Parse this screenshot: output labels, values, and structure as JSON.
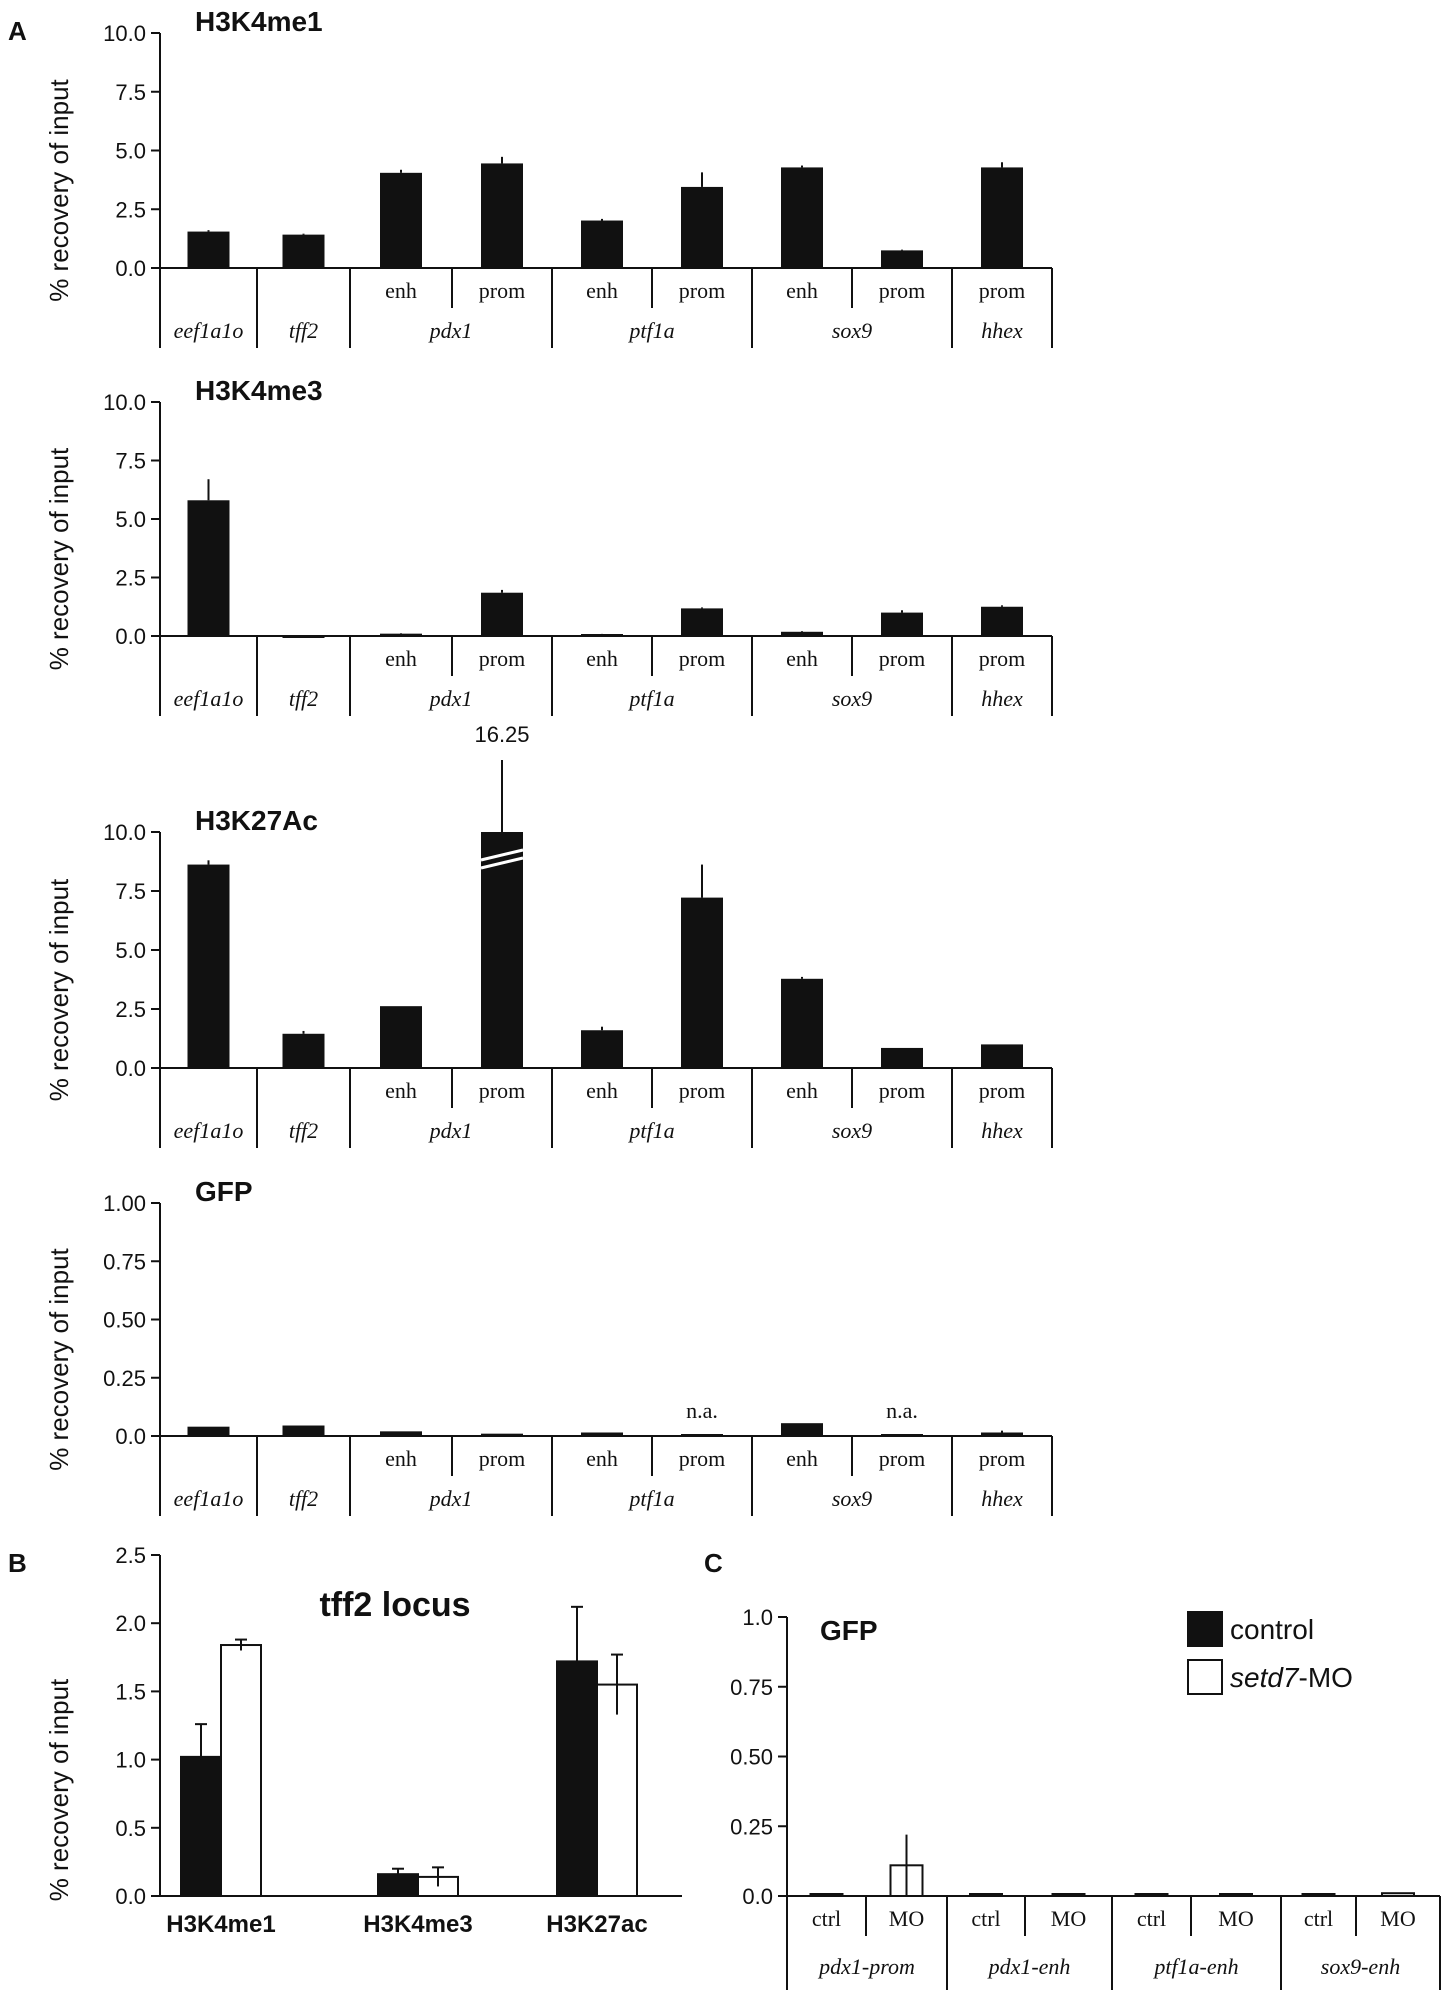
{
  "chart_data": [
    {
      "type": "bar",
      "panel_letter": "A",
      "title": "H3K4me1",
      "ylabel": "% recovery of input",
      "ylim": [
        0,
        10
      ],
      "yticks": [
        "10.0",
        "7.5",
        "5.0",
        "2.5",
        "0.0"
      ],
      "sublabels": [
        "",
        "",
        "enh",
        "prom",
        "enh",
        "prom",
        "enh",
        "prom",
        "prom"
      ],
      "genes": [
        {
          "label": "eef1a1o",
          "span": [
            0,
            0
          ]
        },
        {
          "label": "tff2",
          "span": [
            1,
            1
          ]
        },
        {
          "label": "pdx1",
          "span": [
            2,
            3
          ]
        },
        {
          "label": "ptf1a",
          "span": [
            4,
            5
          ]
        },
        {
          "label": "sox9",
          "span": [
            6,
            7
          ]
        },
        {
          "label": "hhex",
          "span": [
            8,
            8
          ]
        }
      ],
      "values": [
        1.55,
        1.42,
        4.05,
        4.45,
        2.02,
        3.45,
        4.28,
        0.75,
        4.28
      ],
      "errors": [
        0.06,
        0.04,
        0.13,
        0.28,
        0.07,
        0.62,
        0.08,
        0.03,
        0.22
      ],
      "bar_labels": [],
      "breaks": []
    },
    {
      "type": "bar",
      "panel_letter": "",
      "title": "H3K4me3",
      "ylabel": "% recovery of input",
      "ylim": [
        0,
        10
      ],
      "yticks": [
        "10.0",
        "7.5",
        "5.0",
        "2.5",
        "0.0"
      ],
      "sublabels": [
        "",
        "",
        "enh",
        "prom",
        "enh",
        "prom",
        "enh",
        "prom",
        "prom"
      ],
      "genes": [
        {
          "label": "eef1a1o",
          "span": [
            0,
            0
          ]
        },
        {
          "label": "tff2",
          "span": [
            1,
            1
          ]
        },
        {
          "label": "pdx1",
          "span": [
            2,
            3
          ]
        },
        {
          "label": "ptf1a",
          "span": [
            4,
            5
          ]
        },
        {
          "label": "sox9",
          "span": [
            6,
            7
          ]
        },
        {
          "label": "hhex",
          "span": [
            8,
            8
          ]
        }
      ],
      "values": [
        5.8,
        -0.05,
        0.1,
        1.85,
        0.07,
        1.18,
        0.18,
        1.0,
        1.25
      ],
      "errors": [
        0.9,
        0.0,
        0.02,
        0.12,
        0.02,
        0.04,
        0.03,
        0.1,
        0.06
      ],
      "bar_labels": [],
      "breaks": []
    },
    {
      "type": "bar",
      "panel_letter": "",
      "title": "H3K27Ac",
      "ylabel": "% recovery of input",
      "ylim": [
        0,
        10
      ],
      "yticks": [
        "10.0",
        "7.5",
        "5.0",
        "2.5",
        "0.0"
      ],
      "sublabels": [
        "",
        "",
        "enh",
        "prom",
        "enh",
        "prom",
        "enh",
        "prom",
        "prom"
      ],
      "genes": [
        {
          "label": "eef1a1o",
          "span": [
            0,
            0
          ]
        },
        {
          "label": "tff2",
          "span": [
            1,
            1
          ]
        },
        {
          "label": "pdx1",
          "span": [
            2,
            3
          ]
        },
        {
          "label": "ptf1a",
          "span": [
            4,
            5
          ]
        },
        {
          "label": "sox9",
          "span": [
            6,
            7
          ]
        },
        {
          "label": "hhex",
          "span": [
            8,
            8
          ]
        }
      ],
      "values": [
        8.62,
        1.45,
        2.62,
        16.25,
        1.6,
        7.22,
        3.78,
        0.85,
        1.0
      ],
      "errors": [
        0.18,
        0.12,
        0.0,
        0.0,
        0.15,
        1.4,
        0.08,
        0.0,
        0.0
      ],
      "bar_labels": [
        {
          "index": 3,
          "text": "16.25"
        }
      ],
      "breaks": [
        3
      ]
    },
    {
      "type": "bar",
      "panel_letter": "",
      "title": "GFP",
      "ylabel": "% recovery of input",
      "ylim": [
        0,
        1
      ],
      "yticks": [
        "1.00",
        "0.75",
        "0.50",
        "0.25",
        "0.0"
      ],
      "sublabels": [
        "",
        "",
        "enh",
        "prom",
        "enh",
        "prom",
        "enh",
        "prom",
        "prom"
      ],
      "genes": [
        {
          "label": "eef1a1o",
          "span": [
            0,
            0
          ]
        },
        {
          "label": "tff2",
          "span": [
            1,
            1
          ]
        },
        {
          "label": "pdx1",
          "span": [
            2,
            3
          ]
        },
        {
          "label": "ptf1a",
          "span": [
            4,
            5
          ]
        },
        {
          "label": "sox9",
          "span": [
            6,
            7
          ]
        },
        {
          "label": "hhex",
          "span": [
            8,
            8
          ]
        }
      ],
      "values": [
        0.04,
        0.045,
        0.02,
        0.01,
        0.015,
        0.0,
        0.055,
        0.0,
        0.015
      ],
      "errors": [
        0.0,
        0.0,
        0.0,
        0.0,
        0.0,
        0.0,
        0.0,
        0.0,
        0.008
      ],
      "bar_labels": [
        {
          "index": 5,
          "text": "n.a."
        },
        {
          "index": 7,
          "text": "n.a."
        }
      ],
      "breaks": []
    },
    {
      "type": "bar",
      "panel_letter": "B",
      "title": "tff2 locus",
      "ylabel": "% recovery of input",
      "ylim": [
        0,
        2.5
      ],
      "yticks": [
        "2.5",
        "2.0",
        "1.5",
        "1.0",
        "0.5",
        "0.0"
      ],
      "categories": [
        "H3K4me1",
        "H3K4me3",
        "H3K27ac"
      ],
      "series": [
        {
          "name": "control",
          "values": [
            1.02,
            0.16,
            1.72
          ],
          "errors": [
            0.24,
            0.04,
            0.4
          ]
        },
        {
          "name": "setd7-MO",
          "values": [
            1.84,
            0.14,
            1.55
          ],
          "errors": [
            0.04,
            0.07,
            0.22
          ]
        }
      ]
    },
    {
      "type": "bar",
      "panel_letter": "C",
      "title": "GFP",
      "ylabel": "",
      "ylim": [
        0,
        1.0
      ],
      "yticks": [
        "1.0",
        "0.75",
        "0.50",
        "0.25",
        "0.0"
      ],
      "sublabels": [
        "ctrl",
        "MO",
        "ctrl",
        "MO",
        "ctrl",
        "MO",
        "ctrl",
        "MO"
      ],
      "groups": [
        "pdx1-prom",
        "pdx1-enh",
        "ptf1a-enh",
        "sox9-enh"
      ],
      "series": [
        {
          "name": "control",
          "values": [
            0.0,
            0.0,
            0.0,
            0.0
          ]
        },
        {
          "name": "setd7-MO",
          "values": [
            0.11,
            0.0,
            0.0,
            0.01
          ],
          "errors": [
            0.11,
            0.0,
            0.0,
            0.0
          ]
        }
      ],
      "legend": [
        {
          "prefix": "",
          "italic": "",
          "suffix": "control",
          "color": "#111111"
        },
        {
          "prefix": "",
          "italic": "setd7",
          "suffix": "-MO",
          "color": "#ffffff"
        }
      ]
    }
  ]
}
